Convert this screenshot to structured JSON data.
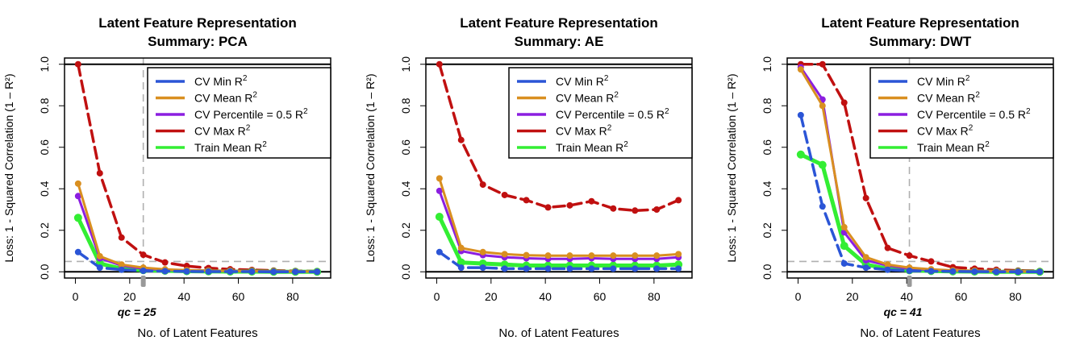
{
  "legend_labels": [
    "CV Min R",
    "CV Mean R",
    "CV Percentile = 0.5 R",
    "CV Max R",
    "Train Mean R"
  ],
  "legend_superscript": "2",
  "series_colors": [
    "#2b55d6",
    "#d98f20",
    "#8b1ee0",
    "#c01010",
    "#33ee33"
  ],
  "charts": [
    {
      "title_line1": "Latent Feature Representation",
      "title_line2": "Summary: PCA",
      "ylabel": "Loss: 1 - Squared Correlation (1 – R²)",
      "xlabel": "No. of Latent Features",
      "qc_label": "qc = 25",
      "chart_data": {
        "type": "line",
        "x": [
          1,
          9,
          17,
          25,
          33,
          41,
          49,
          57,
          65,
          73,
          81,
          89
        ],
        "xlim": [
          -4,
          94
        ],
        "ylim": [
          -0.03,
          1.03
        ],
        "xticks": [
          0,
          20,
          40,
          60,
          80
        ],
        "yticks": [
          0.0,
          0.2,
          0.4,
          0.6,
          0.8,
          1.0
        ],
        "qc": 25,
        "threshold": 0.05,
        "series": [
          {
            "name": "CV Min R²",
            "values": [
              0.095,
              0.02,
              0.01,
              0.005,
              0.003,
              0.002,
              0.001,
              0.001,
              0.001,
              0.0,
              0.0,
              0.0
            ]
          },
          {
            "name": "CV Mean R²",
            "values": [
              0.425,
              0.075,
              0.035,
              0.02,
              0.012,
              0.008,
              0.005,
              0.004,
              0.003,
              0.002,
              0.002,
              0.001
            ]
          },
          {
            "name": "CV Percentile = 0.5 R²",
            "values": [
              0.365,
              0.065,
              0.03,
              0.015,
              0.01,
              0.007,
              0.005,
              0.004,
              0.003,
              0.002,
              0.002,
              0.001
            ]
          },
          {
            "name": "CV Max R²",
            "values": [
              1.0,
              0.475,
              0.165,
              0.082,
              0.045,
              0.028,
              0.018,
              0.012,
              0.009,
              0.006,
              0.004,
              0.003
            ]
          },
          {
            "name": "Train Mean R²",
            "values": [
              0.26,
              0.04,
              0.015,
              0.008,
              0.005,
              0.003,
              0.002,
              0.001,
              0.001,
              0.0,
              0.0,
              0.0
            ]
          }
        ]
      }
    },
    {
      "title_line1": "Latent Feature Representation",
      "title_line2": "Summary: AE",
      "ylabel": "Loss: 1 - Squared Correlation (1 – R²)",
      "xlabel": "No. of Latent Features",
      "qc_label": "",
      "chart_data": {
        "type": "line",
        "x": [
          1,
          9,
          17,
          25,
          33,
          41,
          49,
          57,
          65,
          73,
          81,
          89
        ],
        "xlim": [
          -4,
          94
        ],
        "ylim": [
          -0.03,
          1.03
        ],
        "xticks": [
          0,
          20,
          40,
          60,
          80
        ],
        "yticks": [
          0.0,
          0.2,
          0.4,
          0.6,
          0.8,
          1.0
        ],
        "qc": null,
        "threshold": null,
        "series": [
          {
            "name": "CV Min R²",
            "values": [
              0.095,
              0.02,
              0.02,
              0.015,
              0.015,
              0.015,
              0.015,
              0.015,
              0.015,
              0.015,
              0.015,
              0.015
            ]
          },
          {
            "name": "CV Mean R²",
            "values": [
              0.45,
              0.115,
              0.095,
              0.085,
              0.08,
              0.078,
              0.078,
              0.078,
              0.078,
              0.078,
              0.078,
              0.085
            ]
          },
          {
            "name": "CV Percentile = 0.5 R²",
            "values": [
              0.39,
              0.1,
              0.08,
              0.07,
              0.065,
              0.062,
              0.062,
              0.065,
              0.062,
              0.062,
              0.062,
              0.07
            ]
          },
          {
            "name": "CV Max R²",
            "values": [
              1.0,
              0.635,
              0.42,
              0.37,
              0.345,
              0.31,
              0.32,
              0.34,
              0.305,
              0.295,
              0.3,
              0.345
            ]
          },
          {
            "name": "Train Mean R²",
            "values": [
              0.265,
              0.045,
              0.04,
              0.035,
              0.03,
              0.03,
              0.03,
              0.03,
              0.03,
              0.03,
              0.03,
              0.035
            ]
          }
        ]
      }
    },
    {
      "title_line1": "Latent Feature Representation",
      "title_line2": "Summary: DWT",
      "ylabel": "Loss: 1 - Squared Correlation (1 – R²)",
      "xlabel": "No. of Latent Features",
      "qc_label": "qc = 41",
      "chart_data": {
        "type": "line",
        "x": [
          1,
          9,
          17,
          25,
          33,
          41,
          49,
          57,
          65,
          73,
          81,
          89
        ],
        "xlim": [
          -4,
          94
        ],
        "ylim": [
          -0.03,
          1.03
        ],
        "xticks": [
          0,
          20,
          40,
          60,
          80
        ],
        "yticks": [
          0.0,
          0.2,
          0.4,
          0.6,
          0.8,
          1.0
        ],
        "qc": 41,
        "threshold": 0.05,
        "series": [
          {
            "name": "CV Min R²",
            "values": [
              0.755,
              0.315,
              0.04,
              0.02,
              0.01,
              0.005,
              0.003,
              0.002,
              0.001,
              0.0,
              0.0,
              0.0
            ]
          },
          {
            "name": "CV Mean R²",
            "values": [
              0.975,
              0.8,
              0.215,
              0.07,
              0.035,
              0.02,
              0.012,
              0.007,
              0.005,
              0.003,
              0.002,
              0.001
            ]
          },
          {
            "name": "CV Percentile = 0.5 R²",
            "values": [
              0.985,
              0.83,
              0.19,
              0.055,
              0.03,
              0.015,
              0.01,
              0.006,
              0.004,
              0.003,
              0.002,
              0.001
            ]
          },
          {
            "name": "CV Max R²",
            "values": [
              1.0,
              1.0,
              0.815,
              0.355,
              0.115,
              0.078,
              0.05,
              0.022,
              0.015,
              0.01,
              0.006,
              0.004
            ]
          },
          {
            "name": "Train Mean R²",
            "values": [
              0.565,
              0.515,
              0.125,
              0.035,
              0.015,
              0.007,
              0.004,
              0.002,
              0.001,
              0.0,
              0.0,
              0.0
            ]
          }
        ]
      }
    }
  ]
}
